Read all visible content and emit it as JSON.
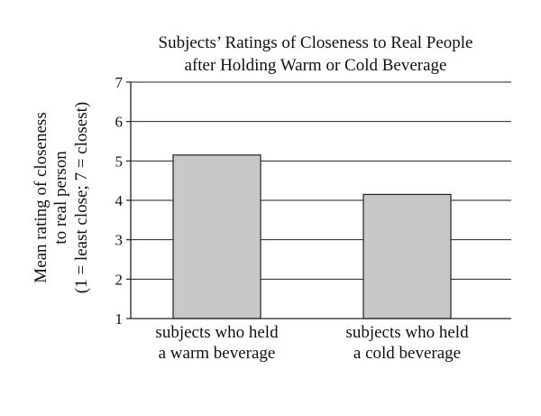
{
  "chart_data": {
    "type": "bar",
    "title_lines": [
      "Subjects’ Ratings of Closeness to Real  People",
      "after Holding Warm or Cold Beverage"
    ],
    "ylabel_lines": [
      "Mean rating of closeness",
      "to real person",
      "(1 = least close; 7 = closest)"
    ],
    "xlabel": "",
    "categories": [
      [
        "subjects who held",
        "a warm beverage"
      ],
      [
        "subjects who held",
        "a cold beverage"
      ]
    ],
    "values": [
      5.15,
      4.15
    ],
    "ylim": [
      1,
      7
    ],
    "yticks": [
      "1",
      "2",
      "3",
      "4",
      "5",
      "6",
      "7"
    ],
    "grid": true,
    "legend": "none",
    "colors": {
      "bar_fill": "#c8c8c8",
      "bar_stroke": "#222222",
      "grid": "#222222",
      "axis": "#222222"
    }
  }
}
